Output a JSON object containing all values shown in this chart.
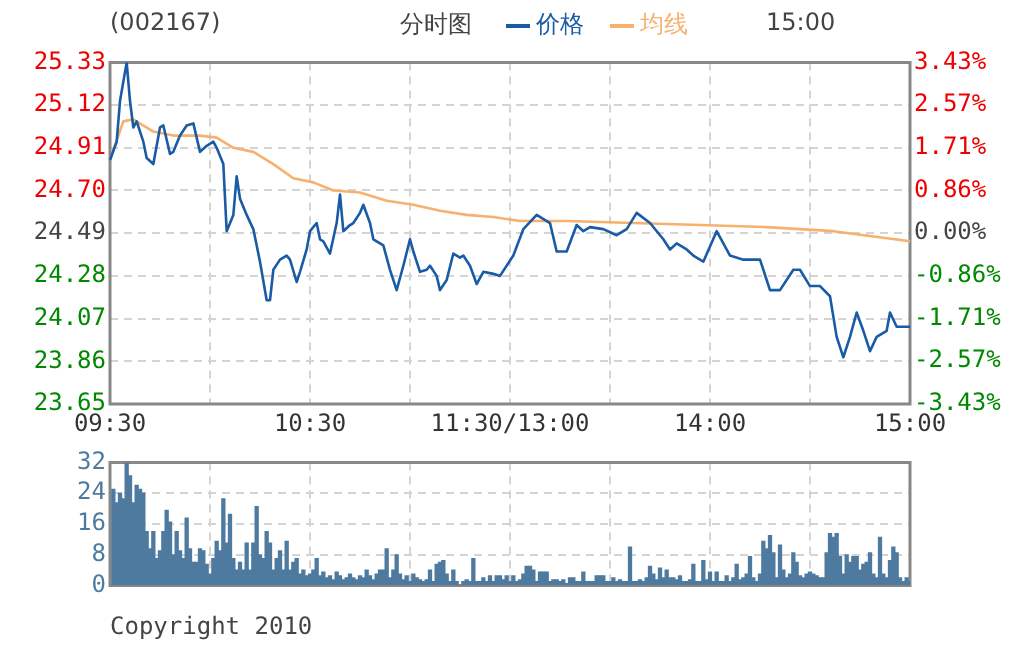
{
  "chart_data": [
    {
      "type": "line",
      "title": "(002167)",
      "subtitle": "分时图",
      "legend": "top",
      "grid": true,
      "annotations": [
        "15:00"
      ],
      "categories": [
        "09:30",
        null,
        null,
        null,
        null,
        null,
        null,
        null,
        null,
        null,
        null,
        null,
        null,
        null,
        null,
        null,
        null,
        null,
        null,
        null,
        null,
        null,
        null,
        null,
        null,
        null,
        null,
        null,
        null,
        null,
        null,
        null,
        null,
        null,
        null,
        null,
        null,
        null,
        null,
        null,
        null,
        null,
        null,
        null,
        null,
        null,
        null,
        null,
        null,
        null,
        null,
        null,
        null,
        null,
        null,
        null,
        null,
        null,
        null,
        null,
        "10:30",
        null,
        null,
        null,
        null,
        null,
        null,
        null,
        null,
        null,
        null,
        null,
        null,
        null,
        null,
        null,
        null,
        null,
        null,
        null,
        null,
        null,
        null,
        null,
        null,
        null,
        null,
        null,
        null,
        null,
        null,
        null,
        null,
        null,
        null,
        null,
        null,
        null,
        null,
        null,
        null,
        null,
        null,
        null,
        null,
        null,
        null,
        null,
        null,
        null,
        null,
        null,
        null,
        null,
        null,
        null,
        null,
        null,
        null,
        null,
        "11:30/13:00",
        null,
        null,
        null,
        null,
        null,
        null,
        null,
        null,
        null,
        null,
        null,
        null,
        null,
        null,
        null,
        null,
        null,
        null,
        null,
        null,
        null,
        null,
        null,
        null,
        null,
        null,
        null,
        null,
        null,
        null,
        null,
        null,
        null,
        null,
        null,
        null,
        null,
        null,
        null,
        null,
        null,
        null,
        null,
        null,
        null,
        null,
        null,
        null,
        null,
        null,
        null,
        null,
        null,
        null,
        null,
        null,
        null,
        null,
        null,
        "14:00",
        null,
        null,
        null,
        null,
        null,
        null,
        null,
        null,
        null,
        null,
        null,
        null,
        null,
        null,
        null,
        null,
        null,
        null,
        null,
        null,
        null,
        null,
        null,
        null,
        null,
        null,
        null,
        null,
        null,
        null,
        null,
        null,
        null,
        null,
        null,
        null,
        null,
        null,
        null,
        null,
        null,
        null,
        null,
        null,
        null,
        null,
        null,
        null,
        null,
        null,
        null,
        null,
        null,
        null,
        null,
        null,
        null,
        null,
        null,
        "15:00"
      ],
      "ylim": [
        23.65,
        25.33
      ],
      "yticks": [
        23.65,
        23.86,
        24.07,
        24.28,
        24.49,
        {
          "value": 24.7,
          "label": "24.70"
        },
        24.91,
        25.12,
        25.33
      ],
      "y2lim": [
        -3.43,
        3.43
      ],
      "y2ticks": [
        {
          "value": -3.43,
          "label": "-3.43%"
        },
        {
          "value": -2.57,
          "label": "-2.57%"
        },
        {
          "value": -1.71,
          "label": "-1.71%"
        },
        {
          "value": -0.86,
          "label": "-0.86%"
        },
        {
          "value": 0,
          "label": "0.00%"
        },
        {
          "value": 0.86,
          "label": "0.86%"
        },
        {
          "value": 1.71,
          "label": "1.71%"
        },
        {
          "value": 2.57,
          "label": "2.57%"
        },
        {
          "value": 3.43,
          "label": "3.43%"
        }
      ],
      "series": [
        {
          "name": "价格",
          "color": "#1a5ba6",
          "values": [
            24.85,
            null,
            24.94,
            25.14,
            null,
            25.33,
            25.14,
            25.01,
            25.04,
            null,
            24.94,
            24.86,
            null,
            24.83,
            null,
            25.01,
            25.02,
            null,
            24.88,
            24.89,
            null,
            24.97,
            null,
            25.02,
            null,
            25.03,
            null,
            24.89,
            null,
            24.92,
            null,
            24.94,
            24.91,
            null,
            24.83,
            24.5,
            null,
            24.58,
            24.77,
            24.66,
            null,
            24.58,
            null,
            24.51,
            null,
            24.35,
            null,
            24.16,
            24.16,
            24.31,
            null,
            24.36,
            null,
            24.38,
            24.36,
            null,
            24.25,
            24.3,
            null,
            24.41,
            24.5,
            null,
            24.54,
            24.46,
            24.45,
            null,
            24.39,
            null,
            24.54,
            24.68,
            24.5,
            null,
            24.53,
            24.54,
            null,
            24.59,
            24.63,
            null,
            24.54,
            24.46,
            null,
            null,
            24.43,
            null,
            24.31,
            null,
            24.21,
            null,
            24.33,
            null,
            24.46,
            24.4,
            null,
            24.3,
            null,
            24.31,
            24.33,
            null,
            24.28,
            24.21,
            null,
            24.26,
            null,
            24.39,
            null,
            24.37,
            24.38,
            null,
            24.33,
            null,
            24.24,
            null,
            24.3,
            null,
            null,
            24.29,
            null,
            24.28,
            null,
            null,
            null,
            24.38,
            null,
            null,
            24.51,
            null,
            null,
            null,
            24.58,
            null,
            null,
            null,
            24.54,
            null,
            24.4,
            null,
            null,
            24.4,
            null,
            null,
            24.53,
            null,
            24.5,
            null,
            24.52,
            null,
            null,
            null,
            24.51,
            null,
            null,
            null,
            24.48,
            null,
            null,
            24.51,
            null,
            null,
            24.59,
            null,
            null,
            null,
            24.54,
            null,
            null,
            null,
            24.46,
            null,
            24.41,
            null,
            24.44,
            null,
            null,
            24.41,
            null,
            24.38,
            null,
            null,
            24.35,
            null,
            null,
            null,
            24.5,
            null,
            null,
            null,
            24.38,
            null,
            null,
            null,
            24.36,
            null,
            null,
            null,
            null,
            24.36,
            null,
            null,
            24.21,
            null,
            null,
            24.21,
            null,
            null,
            null,
            24.31,
            null,
            24.31,
            null,
            null,
            24.23,
            null,
            null,
            24.23,
            null,
            null,
            24.18,
            null,
            23.98,
            null,
            23.88,
            null,
            23.98,
            null,
            24.1,
            null,
            24.01,
            null,
            23.91,
            null,
            23.98,
            null,
            null,
            24.01,
            24.1,
            null,
            24.03,
            null,
            null,
            null,
            24.03
          ]
        },
        {
          "name": "均线",
          "color": "#f5b16d",
          "values": [
            24.85,
            null,
            null,
            null,
            25.04,
            null,
            null,
            25.05,
            null,
            null,
            null,
            null,
            null,
            24.99,
            null,
            null,
            null,
            null,
            null,
            24.97,
            null,
            null,
            null,
            null,
            null,
            null,
            null,
            24.97,
            null,
            null,
            null,
            null,
            24.96,
            null,
            null,
            null,
            null,
            24.91,
            null,
            null,
            null,
            null,
            null,
            24.89,
            null,
            null,
            null,
            null,
            null,
            24.83,
            null,
            null,
            null,
            null,
            null,
            24.76,
            null,
            null,
            null,
            null,
            null,
            24.74,
            null,
            null,
            null,
            null,
            null,
            24.7,
            null,
            null,
            null,
            null,
            null,
            null,
            null,
            24.69,
            null,
            null,
            null,
            null,
            null,
            null,
            null,
            24.65,
            null,
            null,
            null,
            null,
            null,
            null,
            null,
            24.63,
            null,
            null,
            null,
            null,
            null,
            null,
            null,
            24.6,
            null,
            null,
            null,
            null,
            null,
            null,
            null,
            24.58,
            null,
            null,
            null,
            null,
            null,
            null,
            null,
            24.57,
            null,
            null,
            null,
            null,
            null,
            null,
            null,
            24.55,
            null,
            null,
            null,
            null,
            null,
            null,
            null,
            null,
            null,
            null,
            null,
            null,
            null,
            24.55,
            null,
            null,
            null,
            null,
            null,
            null,
            null,
            null,
            null,
            null,
            null,
            null,
            null,
            null,
            null,
            null,
            null,
            null,
            null,
            24.54,
            null,
            null,
            null,
            null,
            null,
            null,
            null,
            null,
            null,
            null,
            null,
            null,
            null,
            null,
            null,
            null,
            null,
            null,
            null,
            24.53,
            null,
            null,
            null,
            null,
            null,
            null,
            null,
            null,
            null,
            null,
            null,
            null,
            null,
            null,
            null,
            null,
            null,
            null,
            null,
            24.52,
            null,
            null,
            null,
            null,
            null,
            null,
            null,
            null,
            null,
            null,
            null,
            null,
            null,
            null,
            null,
            null,
            null,
            null,
            null,
            24.5,
            null,
            null,
            null,
            null,
            null,
            null,
            null,
            null,
            null,
            null,
            null,
            null,
            null,
            null,
            null,
            null,
            null,
            null,
            null,
            null,
            null,
            null,
            24.45
          ]
        }
      ]
    },
    {
      "type": "bar",
      "grid": true,
      "tick_labels": "y",
      "annotations": [
        "Copyright 2010"
      ],
      "color": "#4f7aa0",
      "categories": [
        null,
        null,
        null,
        null,
        null,
        null,
        null,
        null,
        null,
        null,
        null,
        null,
        null,
        null,
        null,
        null,
        null,
        null,
        null,
        null,
        null,
        null,
        null,
        null,
        null,
        null,
        null,
        null,
        null,
        null,
        null,
        null,
        null,
        null,
        null,
        null,
        null,
        null,
        null,
        null,
        null,
        null,
        null,
        null,
        null,
        null,
        null,
        null,
        null,
        null,
        null,
        null,
        null,
        null,
        null,
        null,
        null,
        null,
        null,
        null,
        null,
        null,
        null,
        null,
        null,
        null,
        null,
        null,
        null,
        null,
        null,
        null,
        null,
        null,
        null,
        null,
        null,
        null,
        null,
        null,
        null,
        null,
        null,
        null,
        null,
        null,
        null,
        null,
        null,
        null,
        null,
        null,
        null,
        null,
        null,
        null,
        null,
        null,
        null,
        null,
        null,
        null,
        null,
        null,
        null,
        null,
        null,
        null,
        null,
        null,
        null,
        null,
        null,
        null,
        null,
        null,
        null,
        null,
        null,
        null,
        null,
        null,
        null,
        null,
        null,
        null,
        null,
        null,
        null,
        null,
        null,
        null,
        null,
        null,
        null,
        null,
        null,
        null,
        null,
        null,
        null,
        null,
        null,
        null,
        null,
        null,
        null,
        null,
        null,
        null,
        null,
        null,
        null,
        null,
        null,
        null,
        null,
        null,
        null,
        null,
        null,
        null,
        null,
        null,
        null,
        null,
        null,
        null,
        null,
        null,
        null,
        null,
        null,
        null,
        null,
        null,
        null,
        null,
        null,
        null,
        null,
        null,
        null,
        null,
        null,
        null,
        null,
        null,
        null,
        null,
        null,
        null,
        null,
        null,
        null,
        null,
        null,
        null,
        null,
        null,
        null,
        null,
        null,
        null,
        null,
        null,
        null,
        null,
        null,
        null,
        null,
        null,
        null,
        null,
        null,
        null,
        null,
        null,
        null,
        null,
        null,
        null,
        null,
        null,
        null,
        null,
        null,
        null,
        null,
        null,
        null,
        null,
        null,
        null,
        null,
        null,
        null,
        null,
        null,
        null,
        null
      ],
      "ylim": [
        0,
        32
      ],
      "yticks": [
        0,
        8,
        16,
        24,
        32
      ],
      "values": [
        null,
        25,
        21.5,
        24,
        22.5,
        32,
        28.5,
        21.5,
        26,
        25,
        24,
        14,
        9.5,
        14,
        7,
        9,
        14,
        19.5,
        16.5,
        8,
        14,
        9,
        7,
        17.5,
        9.5,
        6,
        6,
        9.5,
        9,
        5.5,
        3,
        7,
        11.5,
        9,
        22.5,
        11,
        18.5,
        7,
        4,
        6,
        4,
        11,
        4,
        11,
        20.5,
        8,
        7,
        14,
        11,
        4,
        7,
        9,
        4,
        11.5,
        4,
        6,
        7,
        3,
        4,
        2.5,
        3,
        4,
        7,
        2.5,
        3.5,
        2,
        2.5,
        1.5,
        3.5,
        2.5,
        1.5,
        2,
        3,
        2,
        1.5,
        2.5,
        2,
        4,
        2.5,
        1.5,
        3,
        4,
        4,
        9.5,
        2,
        4,
        8,
        3,
        1.5,
        2.5,
        1,
        3,
        2,
        1.5,
        1,
        1.5,
        4,
        1,
        5.5,
        6,
        6.5,
        3,
        1,
        4,
        1,
        0,
        1,
        1.5,
        1,
        7,
        1,
        1,
        2,
        1,
        2.5,
        1,
        2.5,
        2.5,
        1.5,
        2.5,
        1,
        2.5,
        1,
        1.5,
        3,
        5,
        5,
        4,
        1,
        3.5,
        3.5,
        3.5,
        1,
        1.5,
        1.5,
        1,
        1.5,
        0.5,
        2,
        2,
        1,
        1,
        3.5,
        1,
        1,
        1,
        2.5,
        2.5,
        2.5,
        1,
        1,
        2,
        1,
        1.5,
        1,
        1,
        10,
        1,
        1,
        1.5,
        1,
        2,
        5,
        3,
        1.5,
        4.5,
        2,
        4,
        2,
        2,
        1.5,
        2.5,
        1,
        1,
        1.5,
        5.5,
        1,
        1,
        6.5,
        1.5,
        3.5,
        1,
        3.5,
        1,
        1,
        2.5,
        1,
        2,
        5.5,
        1.5,
        2,
        3,
        7.5,
        2,
        1,
        3,
        11.5,
        9.5,
        13,
        8.5,
        2,
        10.5,
        4,
        2,
        3,
        8.5,
        6,
        2.5,
        2,
        3,
        3.5,
        3,
        2.5,
        2,
        2,
        8.5,
        13.5,
        12.5,
        13.5,
        7.5,
        3,
        8,
        6,
        7.5,
        7.5,
        4,
        5.5,
        6,
        8.5,
        3,
        2,
        12.5,
        3,
        2,
        6.5,
        10,
        8.5,
        2,
        1,
        2,
        1
      ]
    }
  ]
}
